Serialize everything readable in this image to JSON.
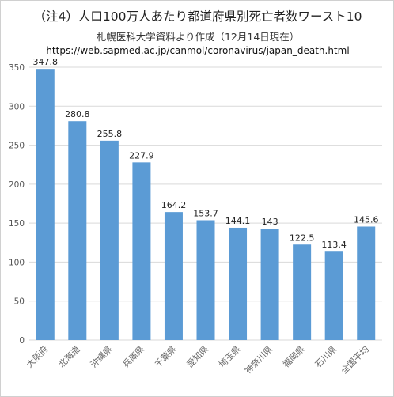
{
  "header": {
    "title": "（注4）人口100万人あたり都道府県別死亡者数ワースト10",
    "subtitle": "札幌医科大学資料より作成（12月14日現在）",
    "source_url": "https://web.sapmed.ac.jp/canmol/coronavirus/japan_death.html"
  },
  "chart_data": {
    "type": "bar",
    "title": "（注4）人口100万人あたり都道府県別死亡者数ワースト10",
    "categories": [
      "大阪府",
      "北海道",
      "沖縄県",
      "兵庫県",
      "千葉県",
      "愛知県",
      "埼玉県",
      "神奈川県",
      "福岡県",
      "石川県",
      "全国平均"
    ],
    "values": [
      347.8,
      280.8,
      255.8,
      227.9,
      164.2,
      153.7,
      144.1,
      143,
      122.5,
      113.4,
      145.6
    ],
    "value_labels": [
      "347.8",
      "280.8",
      "255.8",
      "227.9",
      "164.2",
      "153.7",
      "144.1",
      "143",
      "122.5",
      "113.4",
      "145.6"
    ],
    "yticks": [
      "0",
      "50",
      "100",
      "150",
      "200",
      "250",
      "300",
      "350"
    ],
    "ylim": [
      0,
      350
    ],
    "grid": true,
    "bar_color": "#5b9bd5",
    "grid_color": "#d9d9d9"
  }
}
